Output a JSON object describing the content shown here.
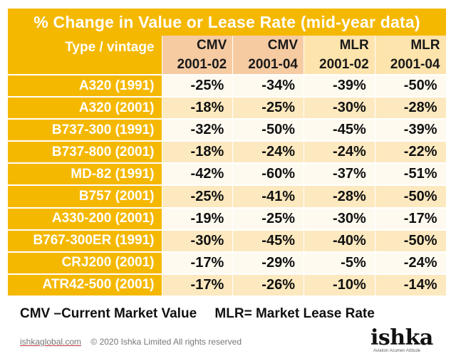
{
  "chart_data": {
    "type": "table",
    "title": "% Change in Value or Lease Rate (mid-year data)",
    "row_header_label": "Type / vintage",
    "columns": [
      {
        "metric": "CMV",
        "period": "2001-02",
        "group": "cmv"
      },
      {
        "metric": "CMV",
        "period": "2001-04",
        "group": "cmv"
      },
      {
        "metric": "MLR",
        "period": "2001-02",
        "group": "mlr"
      },
      {
        "metric": "MLR",
        "period": "2001-04",
        "group": "mlr"
      }
    ],
    "rows": [
      {
        "label": "A320 (1991)",
        "values": [
          "-25%",
          "-34%",
          "-39%",
          "-50%"
        ]
      },
      {
        "label": "A320 (2001)",
        "values": [
          "-18%",
          "-25%",
          "-30%",
          "-28%"
        ]
      },
      {
        "label": "B737-300 (1991)",
        "values": [
          "-32%",
          "-50%",
          "-45%",
          "-39%"
        ]
      },
      {
        "label": "B737-800 (2001)",
        "values": [
          "-18%",
          "-24%",
          "-24%",
          "-22%"
        ]
      },
      {
        "label": "MD-82 (1991)",
        "values": [
          "-42%",
          "-60%",
          "-37%",
          "-51%"
        ]
      },
      {
        "label": "B757 (2001)",
        "values": [
          "-25%",
          "-41%",
          "-28%",
          "-50%"
        ]
      },
      {
        "label": "A330-200 (2001)",
        "values": [
          "-19%",
          "-25%",
          "-30%",
          "-17%"
        ]
      },
      {
        "label": "B767-300ER (1991)",
        "values": [
          "-30%",
          "-45%",
          "-40%",
          "-50%"
        ]
      },
      {
        "label": "CRJ200 (2001)",
        "values": [
          "-17%",
          "-29%",
          "-5%",
          "-24%"
        ]
      },
      {
        "label": "ATR42-500 (2001)",
        "values": [
          "-17%",
          "-26%",
          "-10%",
          "-14%"
        ]
      }
    ]
  },
  "legend": {
    "cmv": "CMV –Current Market Value",
    "mlr": "MLR= Market Lease Rate"
  },
  "footer": {
    "site": "ishkaglobal.com",
    "copyright": "© 2020  Ishka Limited  All rights reserved"
  },
  "logo": {
    "word": "ishka",
    "tagline": "Aviation Acumen Attitude"
  },
  "colors": {
    "accent": "#f5b800",
    "cmv_header": "#f6cba2",
    "mlr_header": "#fde4ad",
    "row_tint": "#fde9bf",
    "row_light": "#fffaf0"
  }
}
